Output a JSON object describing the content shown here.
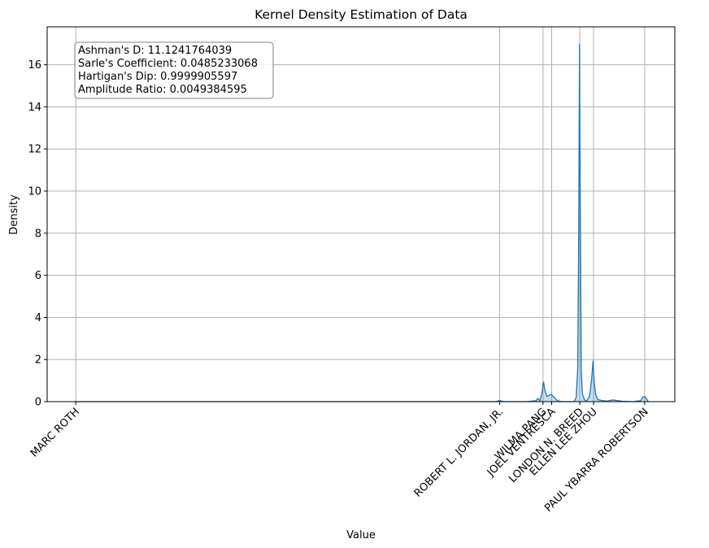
{
  "chart_data": {
    "type": "area",
    "title": "Kernel Density Estimation of Data",
    "xlabel": "Value",
    "ylabel": "Density",
    "ylim": [
      0,
      17.8
    ],
    "yticks": [
      0,
      2,
      4,
      6,
      8,
      10,
      12,
      14,
      16
    ],
    "grid": true,
    "x_tick_labels": [
      "MARC ROTH",
      "ROBERT L. JORDAN, JR.",
      "WILMA PANG",
      "JOEL VENTRESCA",
      "LONDON N. BREED",
      "ELLEN LEE ZHOU",
      "PAUL YBARRA ROBERTSON"
    ],
    "x_tick_values": [
      0,
      0.829,
      0.914,
      0.931,
      0.986,
      1.013,
      1.113
    ],
    "xlim": [
      -0.056,
      1.172
    ],
    "series": [
      {
        "x": [
          0,
          0.5,
          0.82,
          0.826,
          0.829,
          0.834,
          0.84,
          0.86,
          0.88,
          0.9,
          0.904,
          0.908,
          0.912,
          0.915,
          0.918,
          0.922,
          0.926,
          0.93,
          0.936,
          0.942,
          0.95,
          0.96,
          0.975,
          0.979,
          0.982,
          0.984,
          0.9855,
          0.987,
          0.989,
          0.991,
          0.995,
          1.0,
          1.005,
          1.009,
          1.012,
          1.014,
          1.017,
          1.021,
          1.03,
          1.04,
          1.05,
          1.07,
          1.09,
          1.105,
          1.109,
          1.113,
          1.117,
          1.12
        ],
        "y": [
          0.0,
          0.0,
          0.0,
          0.03,
          0.06,
          0.02,
          0.0,
          0.0,
          0.0,
          0.04,
          0.15,
          0.05,
          0.4,
          0.95,
          0.5,
          0.25,
          0.3,
          0.35,
          0.2,
          0.05,
          0.0,
          0.0,
          0.0,
          0.2,
          1.6,
          8.5,
          17.0,
          9.0,
          1.5,
          0.4,
          0.08,
          0.05,
          0.25,
          1.0,
          1.95,
          1.0,
          0.35,
          0.1,
          0.05,
          0.03,
          0.08,
          0.02,
          0.0,
          0.05,
          0.2,
          0.25,
          0.12,
          0.0
        ]
      }
    ],
    "colors": {
      "line": "#1f77b4",
      "fill": "#1f77b4",
      "grid": "#b0b0b0"
    }
  },
  "stats_box": {
    "lines": [
      "Ashman's D: 11.1241764039",
      "Sarle's Coefficient: 0.0485233068",
      "Hartigan's Dip: 0.9999905597",
      "Amplitude Ratio: 0.0049384595"
    ]
  }
}
